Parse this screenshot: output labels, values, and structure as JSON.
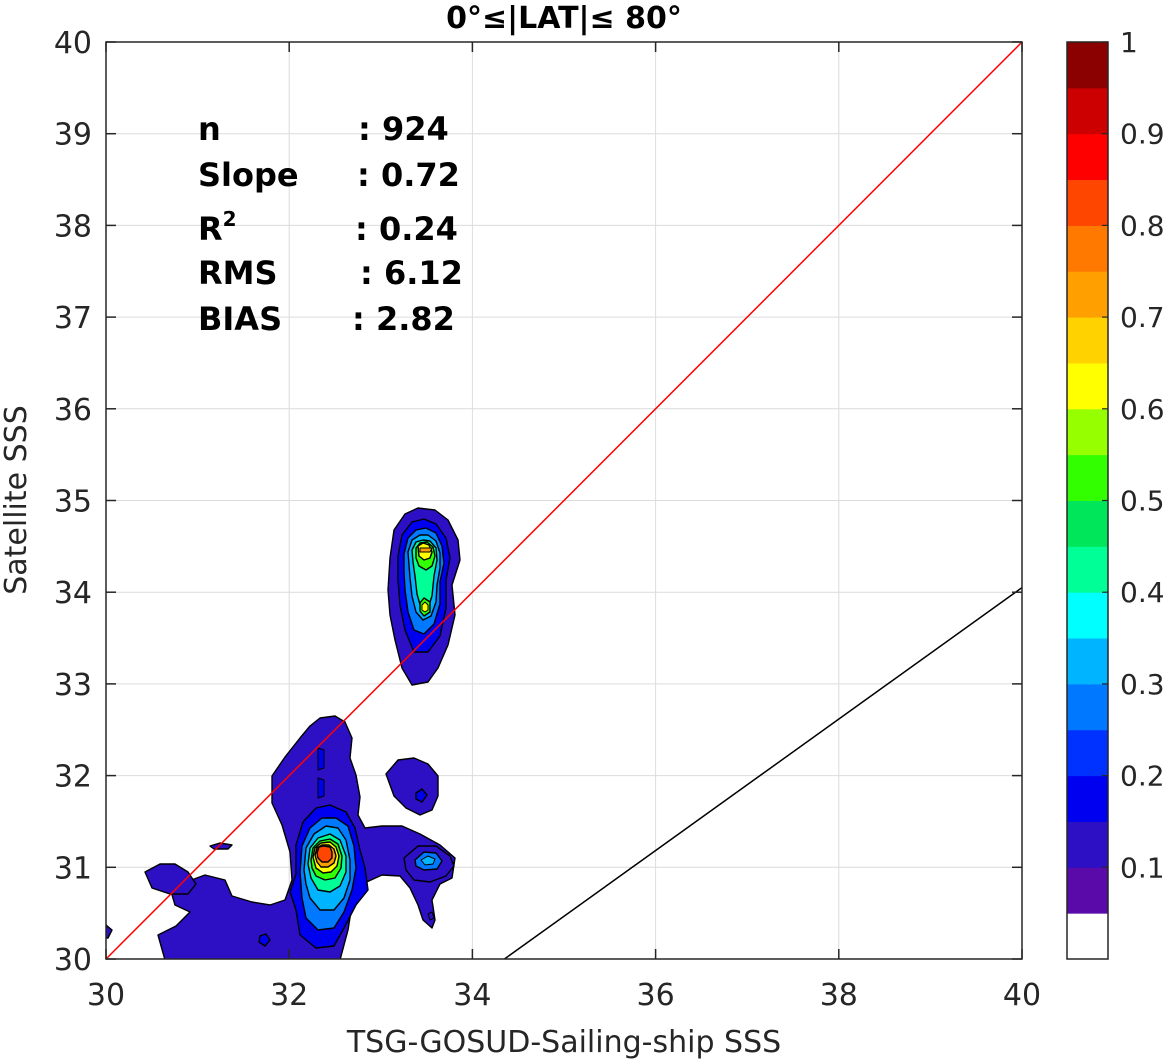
{
  "chart_data": {
    "type": "heatmap",
    "title": "0°≤|LAT|≤ 80°",
    "xlabel": "TSG-GOSUD-Sailing-ship SSS",
    "ylabel": "Satellite SSS",
    "xlim": [
      30,
      40
    ],
    "ylim": [
      30,
      40
    ],
    "xticks": [
      30,
      32,
      34,
      36,
      38,
      40
    ],
    "yticks": [
      30,
      31,
      32,
      33,
      34,
      35,
      36,
      37,
      38,
      39,
      40
    ],
    "grid": true,
    "stats": [
      {
        "key": "n",
        "sep": ": 924"
      },
      {
        "key": "Slope",
        "sep": ": 0.72"
      },
      {
        "key": "R",
        "sup": "2",
        "sep": ": 0.24"
      },
      {
        "key": "RMS",
        "sep": ": 6.12"
      },
      {
        "key": "BIAS",
        "sep": ": 2.82"
      }
    ],
    "lines": [
      {
        "kind": "one-to-one",
        "color": "#ff0000",
        "points": [
          [
            30,
            30
          ],
          [
            40,
            40
          ]
        ]
      },
      {
        "kind": "regression",
        "color": "#000000",
        "points": [
          [
            34.35,
            30
          ],
          [
            40,
            34.05
          ]
        ]
      }
    ],
    "colorbar": {
      "ticks": [
        1,
        0.9,
        0.8,
        0.7,
        0.6,
        0.5,
        0.4,
        0.3,
        0.2,
        0.1
      ],
      "tick_labels": [
        "1",
        "0.9",
        "0.8",
        "0.7",
        "0.6",
        "0.5",
        "0.4",
        "0.3",
        "0.2",
        "0.1"
      ],
      "colors": [
        "#ffffff",
        "#5a0aa8",
        "#2d0fc4",
        "#0000f0",
        "#0032ff",
        "#0078ff",
        "#00b4ff",
        "#00ffff",
        "#00ff96",
        "#00e65a",
        "#32ff00",
        "#96ff00",
        "#ffff00",
        "#ffd200",
        "#ffa000",
        "#ff7800",
        "#ff4600",
        "#ff0000",
        "#cc0000",
        "#8b0000"
      ]
    },
    "density_peaks": [
      {
        "x": 32.35,
        "y": 31.15,
        "value": 0.85
      },
      {
        "x": 33.5,
        "y": 34.45,
        "value": 0.62
      },
      {
        "x": 33.55,
        "y": 33.8,
        "value": 0.5
      },
      {
        "x": 33.55,
        "y": 31.05,
        "value": 0.3
      },
      {
        "x": 33.5,
        "y": 31.75,
        "value": 0.12
      }
    ]
  }
}
